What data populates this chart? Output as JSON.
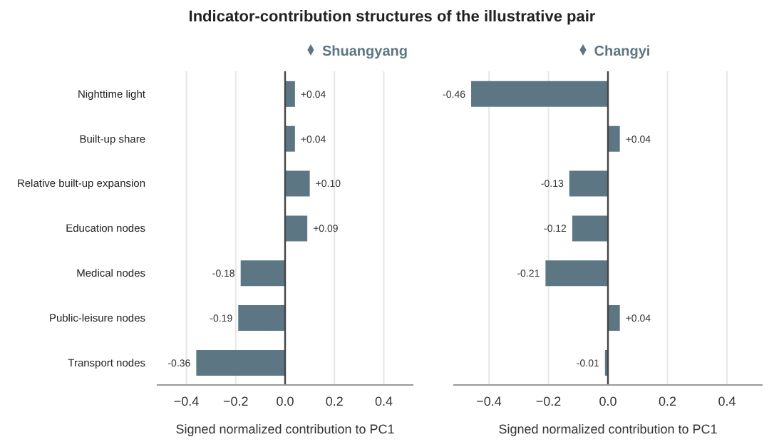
{
  "chart_data": [
    {
      "type": "bar",
      "title": "Indicator-contribution structures of the illustrative pair",
      "orientation": "horizontal",
      "categories": [
        "Nighttime light",
        "Built-up share",
        "Relative built-up expansion",
        "Education nodes",
        "Medical nodes",
        "Public-leisure nodes",
        "Transport nodes"
      ],
      "series": [
        {
          "name": "Shuangyang",
          "color": "#5c7684",
          "values": [
            0.04,
            0.04,
            0.1,
            0.09,
            -0.18,
            -0.19,
            -0.36
          ],
          "value_labels": [
            "+0.04",
            "+0.04",
            "+0.10",
            "+0.09",
            "-0.18",
            "-0.19",
            "-0.36"
          ]
        }
      ],
      "xlabel": "Signed normalized contribution to PC1",
      "xlim": [
        -0.52,
        0.52
      ],
      "xticks": [
        {
          "value": -0.4,
          "label": "−0.4"
        },
        {
          "value": -0.2,
          "label": "−0.2"
        },
        {
          "value": 0,
          "label": "0.0"
        },
        {
          "value": 0.2,
          "label": "0.2"
        },
        {
          "value": 0.4,
          "label": "0.4"
        }
      ],
      "ref_lines": [
        {
          "axis": "x",
          "value": 0,
          "color": "#444444"
        }
      ],
      "grid": "x",
      "legend": "top"
    },
    {
      "type": "bar",
      "orientation": "horizontal",
      "categories": [
        null,
        null,
        null,
        null,
        null,
        null,
        null
      ],
      "series": [
        {
          "name": "Changyi",
          "color": "#5c7684",
          "values": [
            -0.46,
            0.04,
            -0.13,
            -0.12,
            -0.21,
            0.04,
            -0.01
          ],
          "value_labels": [
            "-0.46",
            "+0.04",
            "-0.13",
            "-0.12",
            "-0.21",
            "+0.04",
            "-0.01"
          ]
        }
      ],
      "xlabel": "Signed normalized contribution to PC1",
      "xlim": [
        -0.52,
        0.52
      ],
      "xticks": [
        {
          "value": -0.4,
          "label": "−0.4"
        },
        {
          "value": -0.2,
          "label": "−0.2"
        },
        {
          "value": 0,
          "label": "0.0"
        },
        {
          "value": 0.2,
          "label": "0.2"
        },
        {
          "value": 0.4,
          "label": "0.4"
        }
      ],
      "ref_lines": [
        {
          "axis": "x",
          "value": 0,
          "color": "#444444"
        }
      ],
      "grid": "x",
      "legend": "top"
    }
  ]
}
